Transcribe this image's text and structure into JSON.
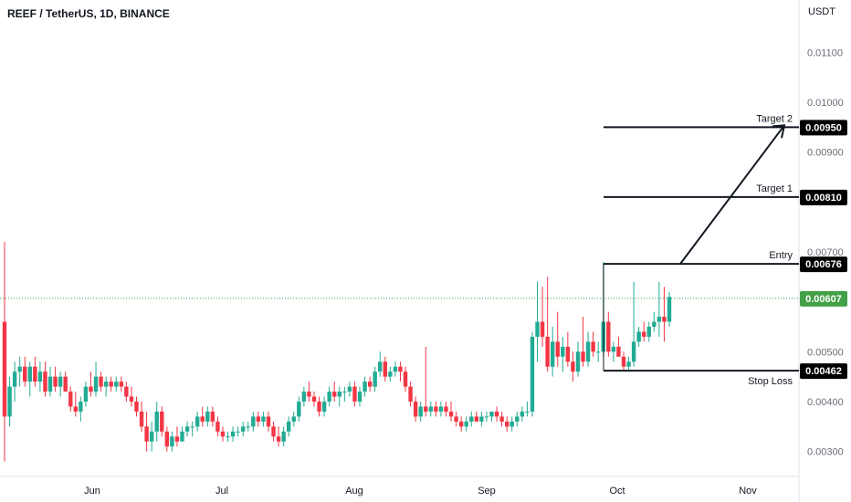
{
  "header": {
    "title": "REEF / TetherUS, 1D, BINANCE",
    "currency": "USDT"
  },
  "colors": {
    "up": "#22ab94",
    "down": "#f23645",
    "line": "#131722",
    "last_price": "#43a047",
    "axis_text": "#6a6d78"
  },
  "chart_data": {
    "type": "candlestick",
    "title": "REEF / TetherUS, 1D, BINANCE",
    "y_unit": "USDT",
    "ylim": [
      0.0025,
      0.0115
    ],
    "y_ticks": [
      "0.01100",
      "0.01000",
      "0.00900",
      "0.00700",
      "0.00500",
      "0.00400",
      "0.00300"
    ],
    "x_ticks": [
      "Jun",
      "Jul",
      "Aug",
      "Sep",
      "Oct",
      "Nov"
    ],
    "last_price": {
      "value": 0.00607,
      "label": "0.00607"
    },
    "levels": [
      {
        "name": "Target 2",
        "value": 0.0095,
        "label": "0.00950"
      },
      {
        "name": "Target 1",
        "value": 0.0081,
        "label": "0.00810"
      },
      {
        "name": "Entry",
        "value": 0.00676,
        "label": "0.00676"
      },
      {
        "name": "Stop Loss",
        "value": 0.00462,
        "label": "0.00462"
      }
    ],
    "candles_ohlc": [
      [
        0.0056,
        0.0072,
        0.0028,
        0.0037
      ],
      [
        0.0037,
        0.0045,
        0.0035,
        0.0043
      ],
      [
        0.0043,
        0.0048,
        0.004,
        0.0046
      ],
      [
        0.0046,
        0.0049,
        0.0043,
        0.0047
      ],
      [
        0.0047,
        0.0049,
        0.0043,
        0.0044
      ],
      [
        0.0044,
        0.0048,
        0.0041,
        0.0047
      ],
      [
        0.0047,
        0.0049,
        0.0043,
        0.0044
      ],
      [
        0.0044,
        0.0048,
        0.0042,
        0.0046
      ],
      [
        0.0046,
        0.0048,
        0.0041,
        0.0042
      ],
      [
        0.0042,
        0.0047,
        0.0041,
        0.0045
      ],
      [
        0.0045,
        0.0047,
        0.0042,
        0.0043
      ],
      [
        0.0043,
        0.0046,
        0.0041,
        0.0045
      ],
      [
        0.0045,
        0.0046,
        0.0042,
        0.0042
      ],
      [
        0.0042,
        0.0043,
        0.0038,
        0.0039
      ],
      [
        0.0039,
        0.0042,
        0.0037,
        0.0038
      ],
      [
        0.0038,
        0.0041,
        0.0036,
        0.004
      ],
      [
        0.004,
        0.0044,
        0.0039,
        0.0043
      ],
      [
        0.0043,
        0.0046,
        0.0041,
        0.0042
      ],
      [
        0.0042,
        0.0048,
        0.0041,
        0.0045
      ],
      [
        0.0045,
        0.0046,
        0.0042,
        0.0043
      ],
      [
        0.0043,
        0.0045,
        0.0041,
        0.0044
      ],
      [
        0.0044,
        0.0045,
        0.0042,
        0.0043
      ],
      [
        0.0043,
        0.0045,
        0.0042,
        0.0044
      ],
      [
        0.0044,
        0.0045,
        0.0042,
        0.0043
      ],
      [
        0.0043,
        0.0044,
        0.004,
        0.0041
      ],
      [
        0.0041,
        0.0043,
        0.0039,
        0.004
      ],
      [
        0.004,
        0.0041,
        0.0037,
        0.0038
      ],
      [
        0.0038,
        0.004,
        0.0034,
        0.0035
      ],
      [
        0.0035,
        0.0038,
        0.003,
        0.0032
      ],
      [
        0.0032,
        0.0036,
        0.003,
        0.0034
      ],
      [
        0.0034,
        0.004,
        0.0032,
        0.0038
      ],
      [
        0.0038,
        0.0039,
        0.0033,
        0.0034
      ],
      [
        0.0034,
        0.0035,
        0.003,
        0.0031
      ],
      [
        0.0031,
        0.0034,
        0.003,
        0.0033
      ],
      [
        0.0033,
        0.0035,
        0.0031,
        0.0032
      ],
      [
        0.0032,
        0.0035,
        0.0032,
        0.0034
      ],
      [
        0.0034,
        0.0036,
        0.0033,
        0.0035
      ],
      [
        0.0035,
        0.0036,
        0.0033,
        0.0035
      ],
      [
        0.0035,
        0.0038,
        0.0034,
        0.0037
      ],
      [
        0.0037,
        0.0039,
        0.0035,
        0.0036
      ],
      [
        0.0036,
        0.0039,
        0.0035,
        0.0038
      ],
      [
        0.0038,
        0.0039,
        0.0035,
        0.0036
      ],
      [
        0.0036,
        0.0037,
        0.0033,
        0.0034
      ],
      [
        0.0034,
        0.0035,
        0.0032,
        0.0033
      ],
      [
        0.0033,
        0.0034,
        0.0032,
        0.0033
      ],
      [
        0.0033,
        0.0035,
        0.0032,
        0.0034
      ],
      [
        0.0034,
        0.0035,
        0.0033,
        0.0034
      ],
      [
        0.0034,
        0.0036,
        0.0033,
        0.0035
      ],
      [
        0.0035,
        0.0036,
        0.0034,
        0.0035
      ],
      [
        0.0035,
        0.0038,
        0.0034,
        0.0037
      ],
      [
        0.0037,
        0.0038,
        0.0035,
        0.0036
      ],
      [
        0.0036,
        0.0038,
        0.0035,
        0.0037
      ],
      [
        0.0037,
        0.0038,
        0.0034,
        0.0035
      ],
      [
        0.0035,
        0.0036,
        0.0032,
        0.0033
      ],
      [
        0.0033,
        0.0035,
        0.0031,
        0.0032
      ],
      [
        0.0032,
        0.0035,
        0.0031,
        0.0034
      ],
      [
        0.0034,
        0.0037,
        0.0033,
        0.0036
      ],
      [
        0.0036,
        0.0038,
        0.0035,
        0.0037
      ],
      [
        0.0037,
        0.0041,
        0.0036,
        0.004
      ],
      [
        0.004,
        0.0043,
        0.0039,
        0.0042
      ],
      [
        0.0042,
        0.0044,
        0.004,
        0.0041
      ],
      [
        0.0041,
        0.0042,
        0.0039,
        0.004
      ],
      [
        0.004,
        0.0041,
        0.0037,
        0.0038
      ],
      [
        0.0038,
        0.0041,
        0.0037,
        0.004
      ],
      [
        0.004,
        0.0043,
        0.0039,
        0.0042
      ],
      [
        0.0042,
        0.0044,
        0.004,
        0.0041
      ],
      [
        0.0041,
        0.0043,
        0.0039,
        0.0042
      ],
      [
        0.0042,
        0.0043,
        0.004,
        0.0042
      ],
      [
        0.0042,
        0.0044,
        0.0041,
        0.0043
      ],
      [
        0.0043,
        0.0044,
        0.0039,
        0.004
      ],
      [
        0.004,
        0.0043,
        0.0039,
        0.0042
      ],
      [
        0.0042,
        0.0045,
        0.0041,
        0.0044
      ],
      [
        0.0044,
        0.0045,
        0.0042,
        0.0043
      ],
      [
        0.0043,
        0.0047,
        0.0042,
        0.0046
      ],
      [
        0.0046,
        0.005,
        0.0045,
        0.0048
      ],
      [
        0.0048,
        0.0049,
        0.0044,
        0.0045
      ],
      [
        0.0045,
        0.0047,
        0.0044,
        0.0046
      ],
      [
        0.0046,
        0.0048,
        0.0045,
        0.0047
      ],
      [
        0.0047,
        0.0048,
        0.0044,
        0.0046
      ],
      [
        0.0046,
        0.0047,
        0.0042,
        0.0043
      ],
      [
        0.0043,
        0.0044,
        0.0039,
        0.004
      ],
      [
        0.004,
        0.0041,
        0.0036,
        0.0037
      ],
      [
        0.0037,
        0.004,
        0.0036,
        0.0039
      ],
      [
        0.0039,
        0.0051,
        0.0037,
        0.0038
      ],
      [
        0.0038,
        0.004,
        0.0037,
        0.0039
      ],
      [
        0.0039,
        0.004,
        0.0037,
        0.0038
      ],
      [
        0.0038,
        0.004,
        0.0037,
        0.0039
      ],
      [
        0.0039,
        0.004,
        0.0037,
        0.0038
      ],
      [
        0.0038,
        0.004,
        0.0036,
        0.0037
      ],
      [
        0.0037,
        0.0038,
        0.0035,
        0.0036
      ],
      [
        0.0036,
        0.0037,
        0.0034,
        0.0035
      ],
      [
        0.0035,
        0.0037,
        0.0034,
        0.0036
      ],
      [
        0.0036,
        0.0038,
        0.0035,
        0.0037
      ],
      [
        0.0037,
        0.0038,
        0.0036,
        0.0036
      ],
      [
        0.0036,
        0.0038,
        0.0035,
        0.0037
      ],
      [
        0.0037,
        0.0038,
        0.0036,
        0.0037
      ],
      [
        0.0037,
        0.0038,
        0.0036,
        0.0038
      ],
      [
        0.0038,
        0.0039,
        0.0036,
        0.0037
      ],
      [
        0.0037,
        0.0038,
        0.0035,
        0.0036
      ],
      [
        0.0036,
        0.0037,
        0.0034,
        0.0035
      ],
      [
        0.0035,
        0.0037,
        0.0034,
        0.0036
      ],
      [
        0.0036,
        0.0038,
        0.0035,
        0.0037
      ],
      [
        0.0037,
        0.0039,
        0.0036,
        0.0038
      ],
      [
        0.0038,
        0.004,
        0.0037,
        0.0038
      ],
      [
        0.0038,
        0.0054,
        0.0037,
        0.0053
      ],
      [
        0.0053,
        0.0064,
        0.0048,
        0.0056
      ],
      [
        0.0056,
        0.0063,
        0.0051,
        0.0053
      ],
      [
        0.0053,
        0.0065,
        0.0046,
        0.0047
      ],
      [
        0.0047,
        0.0055,
        0.0045,
        0.0052
      ],
      [
        0.0052,
        0.0058,
        0.0047,
        0.0049
      ],
      [
        0.0049,
        0.0053,
        0.0046,
        0.0051
      ],
      [
        0.0051,
        0.0054,
        0.0047,
        0.0048
      ],
      [
        0.0048,
        0.005,
        0.0044,
        0.0046
      ],
      [
        0.0046,
        0.0052,
        0.0045,
        0.005
      ],
      [
        0.005,
        0.0057,
        0.0047,
        0.0048
      ],
      [
        0.0048,
        0.0054,
        0.0047,
        0.0052
      ],
      [
        0.0052,
        0.0054,
        0.0049,
        0.005
      ],
      [
        0.005,
        0.0052,
        0.0048,
        0.005
      ],
      [
        0.005,
        0.0068,
        0.0049,
        0.0056
      ],
      [
        0.0056,
        0.0058,
        0.0049,
        0.005
      ],
      [
        0.005,
        0.0052,
        0.0048,
        0.0051
      ],
      [
        0.0051,
        0.0053,
        0.0049,
        0.0049
      ],
      [
        0.0049,
        0.005,
        0.0046,
        0.0047
      ],
      [
        0.0047,
        0.0049,
        0.0046,
        0.0048
      ],
      [
        0.0048,
        0.0064,
        0.0047,
        0.0052
      ],
      [
        0.0052,
        0.0055,
        0.0051,
        0.0054
      ],
      [
        0.0054,
        0.0056,
        0.0052,
        0.0053
      ],
      [
        0.0053,
        0.0056,
        0.0052,
        0.0055
      ],
      [
        0.0055,
        0.0058,
        0.0054,
        0.0056
      ],
      [
        0.0056,
        0.0064,
        0.0053,
        0.0057
      ],
      [
        0.0057,
        0.0063,
        0.0052,
        0.0056
      ],
      [
        0.0056,
        0.0062,
        0.0055,
        0.0061
      ]
    ]
  }
}
